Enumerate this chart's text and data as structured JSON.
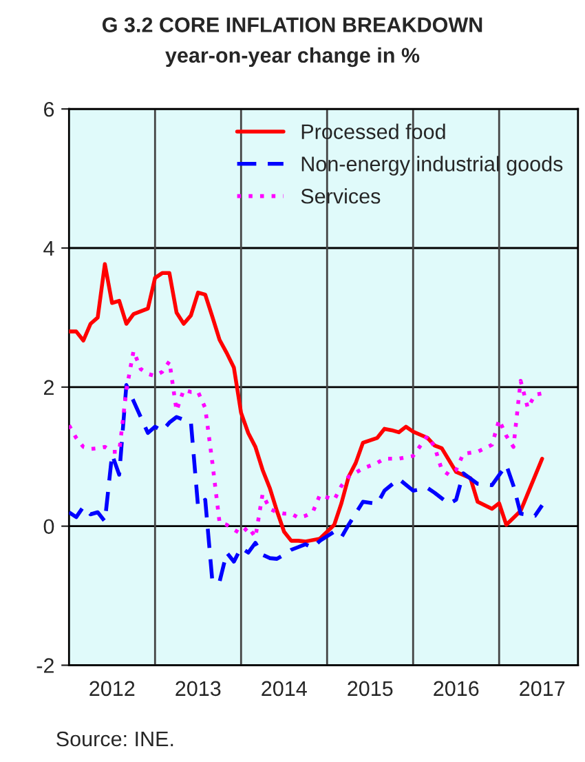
{
  "chart_data": {
    "type": "line",
    "title": "G 3.2 CORE INFLATION BREAKDOWN",
    "subtitle": "year-on-year change in %",
    "annotations": [
      "Source: INE."
    ],
    "xlim": [
      "2012-01",
      "2017-12"
    ],
    "ylim": [
      -2,
      6
    ],
    "yticks": [
      -2,
      0,
      2,
      4,
      6
    ],
    "xticks": [
      {
        "value": "2012-07",
        "label": "2012"
      },
      {
        "value": "2013-01",
        "label": null
      },
      {
        "value": "2013-07",
        "label": "2013"
      },
      {
        "value": "2014-01",
        "label": null
      },
      {
        "value": "2014-07",
        "label": "2014"
      },
      {
        "value": "2015-01",
        "label": null
      },
      {
        "value": "2015-07",
        "label": "2015"
      },
      {
        "value": "2016-01",
        "label": null
      },
      {
        "value": "2016-07",
        "label": "2016"
      },
      {
        "value": "2017-01",
        "label": null
      },
      {
        "value": "2017-07",
        "label": "2017"
      }
    ],
    "grid": true,
    "legend": "top right",
    "series": [
      {
        "name": "Processed food",
        "color": "#ff0000",
        "line_style": "solid",
        "x": [
          "2012-01",
          "2012-02",
          "2012-03",
          "2012-04",
          "2012-05",
          "2012-06",
          "2012-07",
          "2012-08",
          "2012-09",
          "2012-10",
          "2012-11",
          "2012-12",
          "2013-01",
          "2013-02",
          "2013-03",
          "2013-04",
          "2013-05",
          "2013-06",
          "2013-07",
          "2013-08",
          "2013-09",
          "2013-10",
          "2013-11",
          "2013-12",
          "2014-01",
          "2014-02",
          "2014-03",
          "2014-04",
          "2014-05",
          "2014-06",
          "2014-07",
          "2014-08",
          "2014-09",
          "2014-10",
          "2014-11",
          "2014-12",
          "2015-02",
          "2015-03",
          "2015-04",
          "2015-05",
          "2015-06",
          "2015-08",
          "2015-09",
          "2015-10",
          "2015-11",
          "2015-12",
          "2016-01",
          "2016-03",
          "2016-04",
          "2016-05",
          "2016-07",
          "2016-09",
          "2016-10",
          "2016-12",
          "2017-01",
          "2017-02",
          "2017-04",
          "2017-07"
        ],
        "values": [
          2.8,
          2.8,
          2.67,
          2.91,
          3.0,
          3.77,
          3.21,
          3.24,
          2.91,
          3.05,
          3.09,
          3.13,
          3.57,
          3.64,
          3.64,
          3.07,
          2.91,
          3.03,
          3.36,
          3.33,
          3.01,
          2.68,
          2.49,
          2.28,
          1.63,
          1.34,
          1.14,
          0.81,
          0.55,
          0.22,
          -0.08,
          -0.21,
          -0.21,
          -0.22,
          -0.2,
          -0.18,
          0.02,
          0.33,
          0.71,
          0.91,
          1.2,
          1.27,
          1.4,
          1.38,
          1.35,
          1.43,
          1.36,
          1.27,
          1.16,
          1.12,
          0.78,
          0.69,
          0.35,
          0.25,
          0.33,
          0.02,
          0.22,
          0.97
        ]
      },
      {
        "name": "Non-energy industrial goods",
        "color": "#0000ff",
        "line_style": "dashed",
        "x": [
          "2012-01",
          "2012-02",
          "2012-03",
          "2012-04",
          "2012-05",
          "2012-06",
          "2012-07",
          "2012-08",
          "2012-09",
          "2012-10",
          "2012-11",
          "2012-12",
          "2013-01",
          "2013-02",
          "2013-03",
          "2013-04",
          "2013-05",
          "2013-06",
          "2013-07",
          "2013-08",
          "2013-09",
          "2013-10",
          "2013-11",
          "2013-12",
          "2014-01",
          "2014-02",
          "2014-03",
          "2014-04",
          "2014-05",
          "2014-06",
          "2014-07",
          "2014-08",
          "2014-09",
          "2014-10",
          "2014-11",
          "2014-12",
          "2015-02",
          "2015-03",
          "2015-04",
          "2015-06",
          "2015-08",
          "2015-09",
          "2015-11",
          "2016-01",
          "2016-03",
          "2016-04",
          "2016-06",
          "2016-07",
          "2016-08",
          "2016-10",
          "2016-12",
          "2017-02",
          "2017-03",
          "2017-04",
          "2017-06",
          "2017-07"
        ],
        "values": [
          0.2,
          0.13,
          0.28,
          0.17,
          0.2,
          0.07,
          1.03,
          0.74,
          2.03,
          1.8,
          1.57,
          1.34,
          1.43,
          1.37,
          1.49,
          1.57,
          1.53,
          1.5,
          0.28,
          0.38,
          -0.8,
          -0.8,
          -0.38,
          -0.51,
          -0.31,
          -0.38,
          -0.24,
          -0.41,
          -0.46,
          -0.47,
          -0.41,
          -0.34,
          -0.3,
          -0.26,
          -0.31,
          -0.21,
          -0.08,
          -0.16,
          0.02,
          0.35,
          0.32,
          0.51,
          0.68,
          0.51,
          0.55,
          0.48,
          0.32,
          0.38,
          0.76,
          0.61,
          0.59,
          0.88,
          0.58,
          0.18,
          0.15,
          0.3
        ]
      },
      {
        "name": "Services",
        "color": "#ff00ff",
        "line_style": "dotted",
        "x": [
          "2012-01",
          "2012-02",
          "2012-03",
          "2012-04",
          "2012-05",
          "2012-06",
          "2012-07",
          "2012-08",
          "2012-09",
          "2012-10",
          "2012-11",
          "2012-12",
          "2013-01",
          "2013-02",
          "2013-03",
          "2013-04",
          "2013-05",
          "2013-06",
          "2013-07",
          "2013-08",
          "2013-09",
          "2013-10",
          "2013-11",
          "2013-12",
          "2014-01",
          "2014-02",
          "2014-03",
          "2014-04",
          "2014-05",
          "2014-06",
          "2014-07",
          "2014-08",
          "2014-09",
          "2014-10",
          "2014-11",
          "2014-12",
          "2015-02",
          "2015-03",
          "2015-04",
          "2015-06",
          "2015-08",
          "2015-09",
          "2015-11",
          "2016-01",
          "2016-03",
          "2016-04",
          "2016-05",
          "2016-06",
          "2016-07",
          "2016-08",
          "2016-10",
          "2016-12",
          "2017-01",
          "2017-02",
          "2017-03",
          "2017-04",
          "2017-05",
          "2017-06",
          "2017-07"
        ],
        "values": [
          1.45,
          1.27,
          1.14,
          1.11,
          1.12,
          1.14,
          1.07,
          1.07,
          1.96,
          2.52,
          2.26,
          2.19,
          2.16,
          2.22,
          2.37,
          1.66,
          1.96,
          1.93,
          1.93,
          1.7,
          0.91,
          0.05,
          0.02,
          -0.05,
          -0.11,
          -0.01,
          -0.16,
          0.46,
          0.25,
          0.2,
          0.18,
          0.18,
          0.12,
          0.15,
          0.2,
          0.45,
          0.38,
          0.58,
          0.71,
          0.83,
          0.91,
          0.97,
          0.97,
          1.01,
          1.3,
          1.14,
          0.81,
          0.74,
          0.81,
          1.04,
          1.07,
          1.17,
          1.53,
          1.3,
          1.14,
          2.09,
          1.7,
          1.89,
          1.91
        ]
      }
    ]
  }
}
